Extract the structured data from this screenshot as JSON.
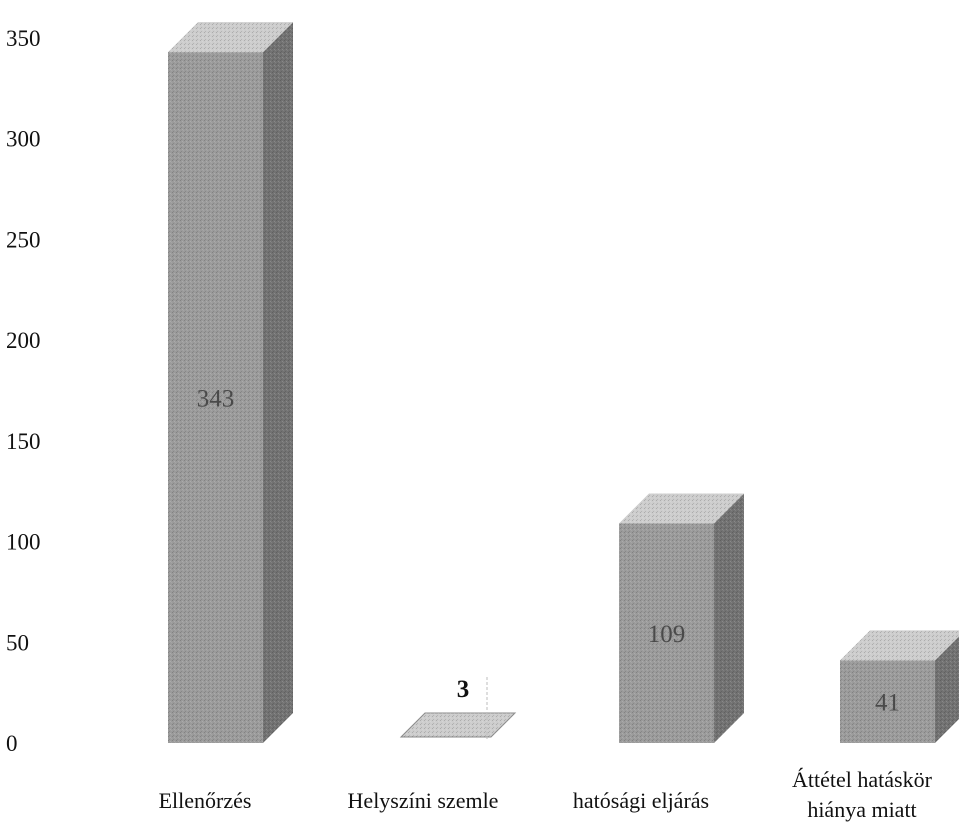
{
  "chart_data": {
    "type": "bar",
    "title": "",
    "xlabel": "",
    "ylabel": "",
    "ylim": [
      0,
      350
    ],
    "y_ticks": [
      0,
      50,
      100,
      150,
      200,
      250,
      300,
      350
    ],
    "grid": false,
    "legend": false,
    "three_d": true,
    "categories": [
      [
        "Ellenőrzés"
      ],
      [
        "Helyszíni szemle"
      ],
      [
        "hatósági eljárás"
      ],
      [
        "Áttétel hatáskör",
        "hiánya miatt"
      ]
    ],
    "values": [
      343,
      3,
      109,
      41
    ],
    "data_labels": [
      "343",
      "3",
      "109",
      "41"
    ],
    "colors": {
      "front": "#9b9b9b",
      "top": "#cdcdcd",
      "side": "#727272"
    }
  }
}
